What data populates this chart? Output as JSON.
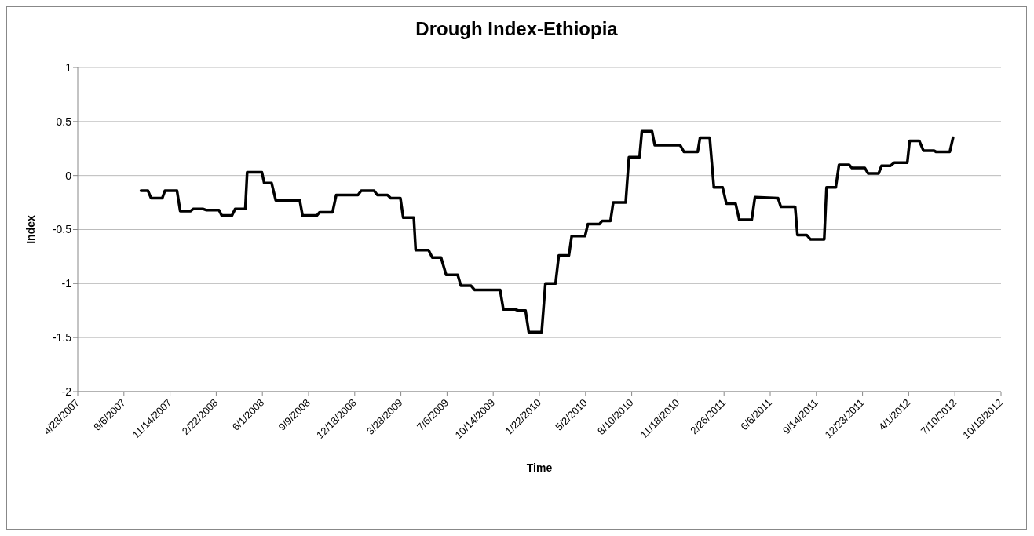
{
  "chart_data": {
    "type": "line",
    "title": "Drough Index-Ethiopia",
    "xlabel": "Time",
    "ylabel": "Index",
    "x": [
      "2007-09-12",
      "2007-09-27",
      "2007-10-04",
      "2007-10-28",
      "2007-11-03",
      "2007-11-29",
      "2007-12-06",
      "2007-12-28",
      "2008-01-03",
      "2008-01-25",
      "2008-01-31",
      "2008-02-28",
      "2008-03-05",
      "2008-03-27",
      "2008-04-03",
      "2008-04-25",
      "2008-04-29",
      "2008-05-31",
      "2008-06-05",
      "2008-06-21",
      "2008-06-30",
      "2008-08-21",
      "2008-08-27",
      "2008-09-27",
      "2008-10-03",
      "2008-10-31",
      "2008-11-08",
      "2008-12-25",
      "2009-01-01",
      "2009-01-29",
      "2009-02-05",
      "2009-02-27",
      "2009-03-06",
      "2009-03-27",
      "2009-04-02",
      "2009-04-25",
      "2009-04-29",
      "2009-05-27",
      "2009-06-04",
      "2009-06-23",
      "2009-07-04",
      "2009-07-29",
      "2009-08-05",
      "2009-08-27",
      "2009-09-04",
      "2009-10-29",
      "2009-11-05",
      "2009-12-01",
      "2009-12-07",
      "2009-12-23",
      "2009-12-30",
      "2010-01-27",
      "2010-02-04",
      "2010-02-26",
      "2010-03-05",
      "2010-03-27",
      "2010-04-02",
      "2010-05-01",
      "2010-05-07",
      "2010-06-01",
      "2010-06-07",
      "2010-06-25",
      "2010-07-01",
      "2010-07-28",
      "2010-08-04",
      "2010-08-27",
      "2010-09-01",
      "2010-09-23",
      "2010-09-29",
      "2010-11-23",
      "2010-12-01",
      "2010-12-31",
      "2011-01-05",
      "2011-01-26",
      "2011-02-04",
      "2011-02-23",
      "2011-03-03",
      "2011-03-23",
      "2011-03-31",
      "2011-04-27",
      "2011-05-04",
      "2011-06-23",
      "2011-06-29",
      "2011-07-30",
      "2011-08-04",
      "2011-08-24",
      "2011-09-01",
      "2011-10-01",
      "2011-10-06",
      "2011-10-26",
      "2011-11-02",
      "2011-11-24",
      "2011-11-30",
      "2011-12-28",
      "2012-01-04",
      "2012-01-27",
      "2012-02-02",
      "2012-02-21",
      "2012-03-01",
      "2012-03-29",
      "2012-04-03",
      "2012-04-24",
      "2012-05-03",
      "2012-05-26",
      "2012-05-30",
      "2012-06-29",
      "2012-07-06"
    ],
    "series": [
      {
        "color": "#000000",
        "values": [
          -0.14,
          -0.14,
          -0.21,
          -0.21,
          -0.14,
          -0.14,
          -0.33,
          -0.33,
          -0.31,
          -0.31,
          -0.32,
          -0.32,
          -0.37,
          -0.37,
          -0.31,
          -0.31,
          0.03,
          0.03,
          -0.07,
          -0.07,
          -0.23,
          -0.23,
          -0.37,
          -0.37,
          -0.34,
          -0.34,
          -0.18,
          -0.18,
          -0.14,
          -0.14,
          -0.18,
          -0.18,
          -0.21,
          -0.21,
          -0.39,
          -0.39,
          -0.69,
          -0.69,
          -0.76,
          -0.76,
          -0.92,
          -0.92,
          -1.02,
          -1.02,
          -1.06,
          -1.06,
          -1.24,
          -1.24,
          -1.25,
          -1.25,
          -1.45,
          -1.45,
          -1.0,
          -1.0,
          -0.74,
          -0.74,
          -0.56,
          -0.56,
          -0.45,
          -0.45,
          -0.42,
          -0.42,
          -0.25,
          -0.25,
          0.17,
          0.17,
          0.41,
          0.41,
          0.28,
          0.28,
          0.22,
          0.22,
          0.35,
          0.35,
          -0.11,
          -0.11,
          -0.26,
          -0.26,
          -0.41,
          -0.41,
          -0.2,
          -0.21,
          -0.29,
          -0.29,
          -0.55,
          -0.55,
          -0.59,
          -0.59,
          -0.11,
          -0.11,
          0.1,
          0.1,
          0.07,
          0.07,
          0.02,
          0.02,
          0.09,
          0.09,
          0.12,
          0.12,
          0.32,
          0.32,
          0.23,
          0.23,
          0.22,
          0.22,
          0.35
        ]
      }
    ],
    "xlim": [
      "2007-04-28",
      "2012-10-18"
    ],
    "xticks": [
      {
        "value": "2007-04-28",
        "label": "4/28/2007"
      },
      {
        "value": "2007-08-06",
        "label": "8/6/2007"
      },
      {
        "value": "2007-11-14",
        "label": "11/14/2007"
      },
      {
        "value": "2008-02-22",
        "label": "2/22/2008"
      },
      {
        "value": "2008-06-01",
        "label": "6/1/2008"
      },
      {
        "value": "2008-09-09",
        "label": "9/9/2008"
      },
      {
        "value": "2008-12-18",
        "label": "12/18/2008"
      },
      {
        "value": "2009-03-28",
        "label": "3/28/2009"
      },
      {
        "value": "2009-07-06",
        "label": "7/6/2009"
      },
      {
        "value": "2009-10-14",
        "label": "10/14/2009"
      },
      {
        "value": "2010-01-22",
        "label": "1/22/2010"
      },
      {
        "value": "2010-05-02",
        "label": "5/2/2010"
      },
      {
        "value": "2010-08-10",
        "label": "8/10/2010"
      },
      {
        "value": "2010-11-18",
        "label": "11/18/2010"
      },
      {
        "value": "2011-02-26",
        "label": "2/26/2011"
      },
      {
        "value": "2011-06-06",
        "label": "6/6/2011"
      },
      {
        "value": "2011-09-14",
        "label": "9/14/2011"
      },
      {
        "value": "2011-12-23",
        "label": "12/23/2011"
      },
      {
        "value": "2012-04-01",
        "label": "4/1/2012"
      },
      {
        "value": "2012-07-10",
        "label": "7/10/2012"
      },
      {
        "value": "2012-10-18",
        "label": "10/18/2012"
      }
    ],
    "ylim": [
      -2,
      1
    ],
    "yticks": [
      -2,
      -1.5,
      -1,
      -0.5,
      0,
      0.5,
      1
    ],
    "grid": "y",
    "marker": "none",
    "line_style": "solid"
  }
}
